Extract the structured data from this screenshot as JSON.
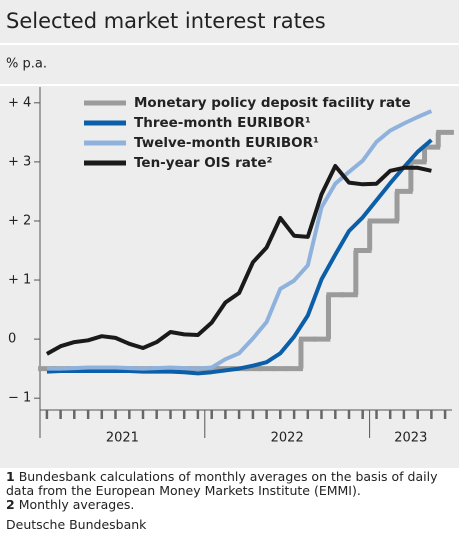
{
  "chart_data": {
    "type": "line",
    "title": "Selected market interest rates",
    "subtitle": "% p.a.",
    "x": [
      2021.042,
      2021.125,
      2021.208,
      2021.292,
      2021.375,
      2021.458,
      2021.542,
      2021.625,
      2021.708,
      2021.792,
      2021.875,
      2021.958,
      2022.042,
      2022.125,
      2022.208,
      2022.292,
      2022.375,
      2022.458,
      2022.542,
      2022.625,
      2022.708,
      2022.792,
      2022.875,
      2022.958,
      2023.042,
      2023.125,
      2023.208,
      2023.292,
      2023.375,
      2023.458
    ],
    "xlim": [
      2021,
      2023.5
    ],
    "xticks": [
      {
        "value": 2021.5,
        "label": "2021"
      },
      {
        "value": 2022.5,
        "label": "2022"
      },
      {
        "value": 2023.25,
        "label": "2023"
      }
    ],
    "xmajor_ticks": [
      2021,
      2022,
      2023
    ],
    "ylim": [
      -1.2,
      4.2
    ],
    "yticks": [
      {
        "value": -1,
        "label": "− 1"
      },
      0,
      {
        "value": 1,
        "label": "+ 1"
      },
      {
        "value": 2,
        "label": "+ 2"
      },
      {
        "value": 3,
        "label": "+ 3"
      },
      {
        "value": 4,
        "label": "+ 4"
      }
    ],
    "legend": "upper left",
    "series": [
      {
        "name": "Monetary policy deposit facility rate",
        "color": "#9b9b9b",
        "step": true,
        "values": [
          -0.5,
          -0.5,
          -0.5,
          -0.5,
          -0.5,
          -0.5,
          -0.5,
          -0.5,
          -0.5,
          -0.5,
          -0.5,
          -0.5,
          -0.5,
          -0.5,
          -0.5,
          -0.5,
          -0.5,
          -0.5,
          -0.5,
          0,
          0,
          0.75,
          0.75,
          1.5,
          2.0,
          2.0,
          2.5,
          3.0,
          3.25,
          3.5
        ]
      },
      {
        "name": "Three-month EURIBOR¹",
        "color": "#0b5ea8",
        "values": [
          -0.55,
          -0.54,
          -0.54,
          -0.54,
          -0.54,
          -0.54,
          -0.54,
          -0.55,
          -0.55,
          -0.55,
          -0.56,
          -0.58,
          -0.56,
          -0.53,
          -0.5,
          -0.45,
          -0.39,
          -0.24,
          0.04,
          0.4,
          1.01,
          1.43,
          1.83,
          2.06,
          2.35,
          2.64,
          2.91,
          3.17,
          3.37,
          null
        ]
      },
      {
        "name": "Twelve-month EURIBOR¹",
        "color": "#8fb2dd",
        "values": [
          -0.5,
          -0.5,
          -0.49,
          -0.48,
          -0.48,
          -0.48,
          -0.49,
          -0.5,
          -0.49,
          -0.48,
          -0.49,
          -0.5,
          -0.48,
          -0.34,
          -0.24,
          0.01,
          0.29,
          0.85,
          0.99,
          1.25,
          2.23,
          2.63,
          2.83,
          3.02,
          3.34,
          3.53,
          3.65,
          3.76,
          3.86,
          null
        ]
      },
      {
        "name": "Ten-year OIS rate²",
        "color": "#1a1a1a",
        "values": [
          -0.25,
          -0.12,
          -0.05,
          -0.02,
          0.05,
          0.02,
          -0.08,
          -0.15,
          -0.05,
          0.12,
          0.08,
          0.07,
          0.28,
          0.62,
          0.78,
          1.3,
          1.55,
          2.05,
          1.75,
          1.73,
          2.45,
          2.93,
          2.65,
          2.62,
          2.63,
          2.85,
          2.9,
          2.9,
          2.85,
          null
        ]
      }
    ],
    "footnotes": [
      {
        "mark": "1",
        "text": "Bundesbank calculations of monthly averages on the basis of daily data from the European Money Markets Institute (EMMI)."
      },
      {
        "mark": "2",
        "text": "Monthly averages."
      }
    ],
    "source": "Deutsche Bundesbank"
  }
}
